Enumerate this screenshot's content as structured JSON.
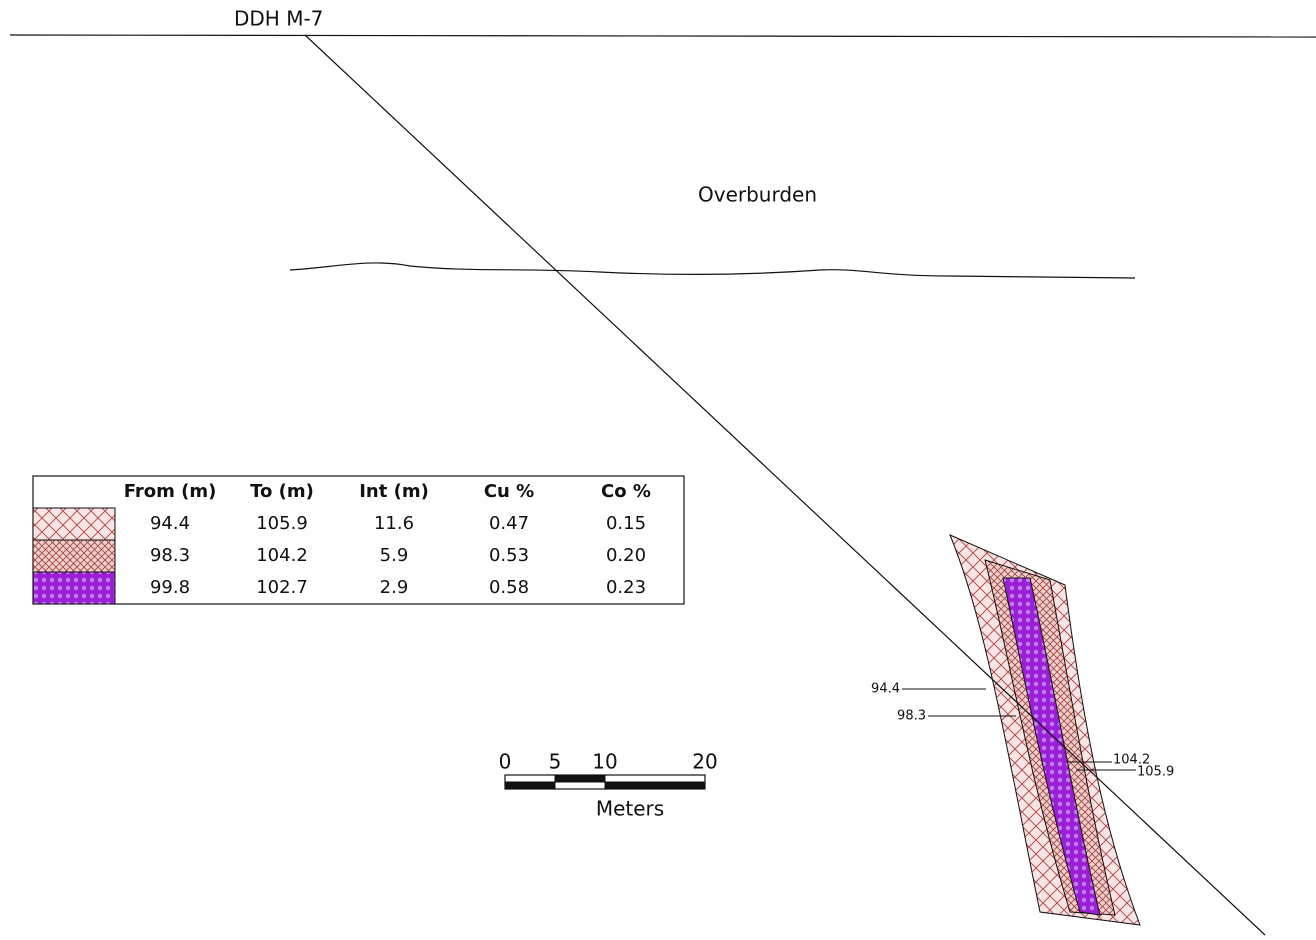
{
  "drill_hole": {
    "label": "DDH M-7"
  },
  "overburden": {
    "label": "Overburden"
  },
  "table": {
    "headers": [
      "From (m)",
      "To (m)",
      "Int (m)",
      "Cu %",
      "Co %"
    ],
    "rows": [
      [
        "94.4",
        "105.9",
        "11.6",
        "0.47",
        "0.15"
      ],
      [
        "98.3",
        "104.2",
        "5.9",
        "0.53",
        "0.20"
      ],
      [
        "99.8",
        "102.7",
        "2.9",
        "0.58",
        "0.23"
      ]
    ]
  },
  "depth_labels": [
    "94.4",
    "98.3",
    "104.2",
    "105.9"
  ],
  "scale_bar": {
    "ticks": [
      "0",
      "5",
      "10",
      "20"
    ],
    "unit": "Meters"
  }
}
